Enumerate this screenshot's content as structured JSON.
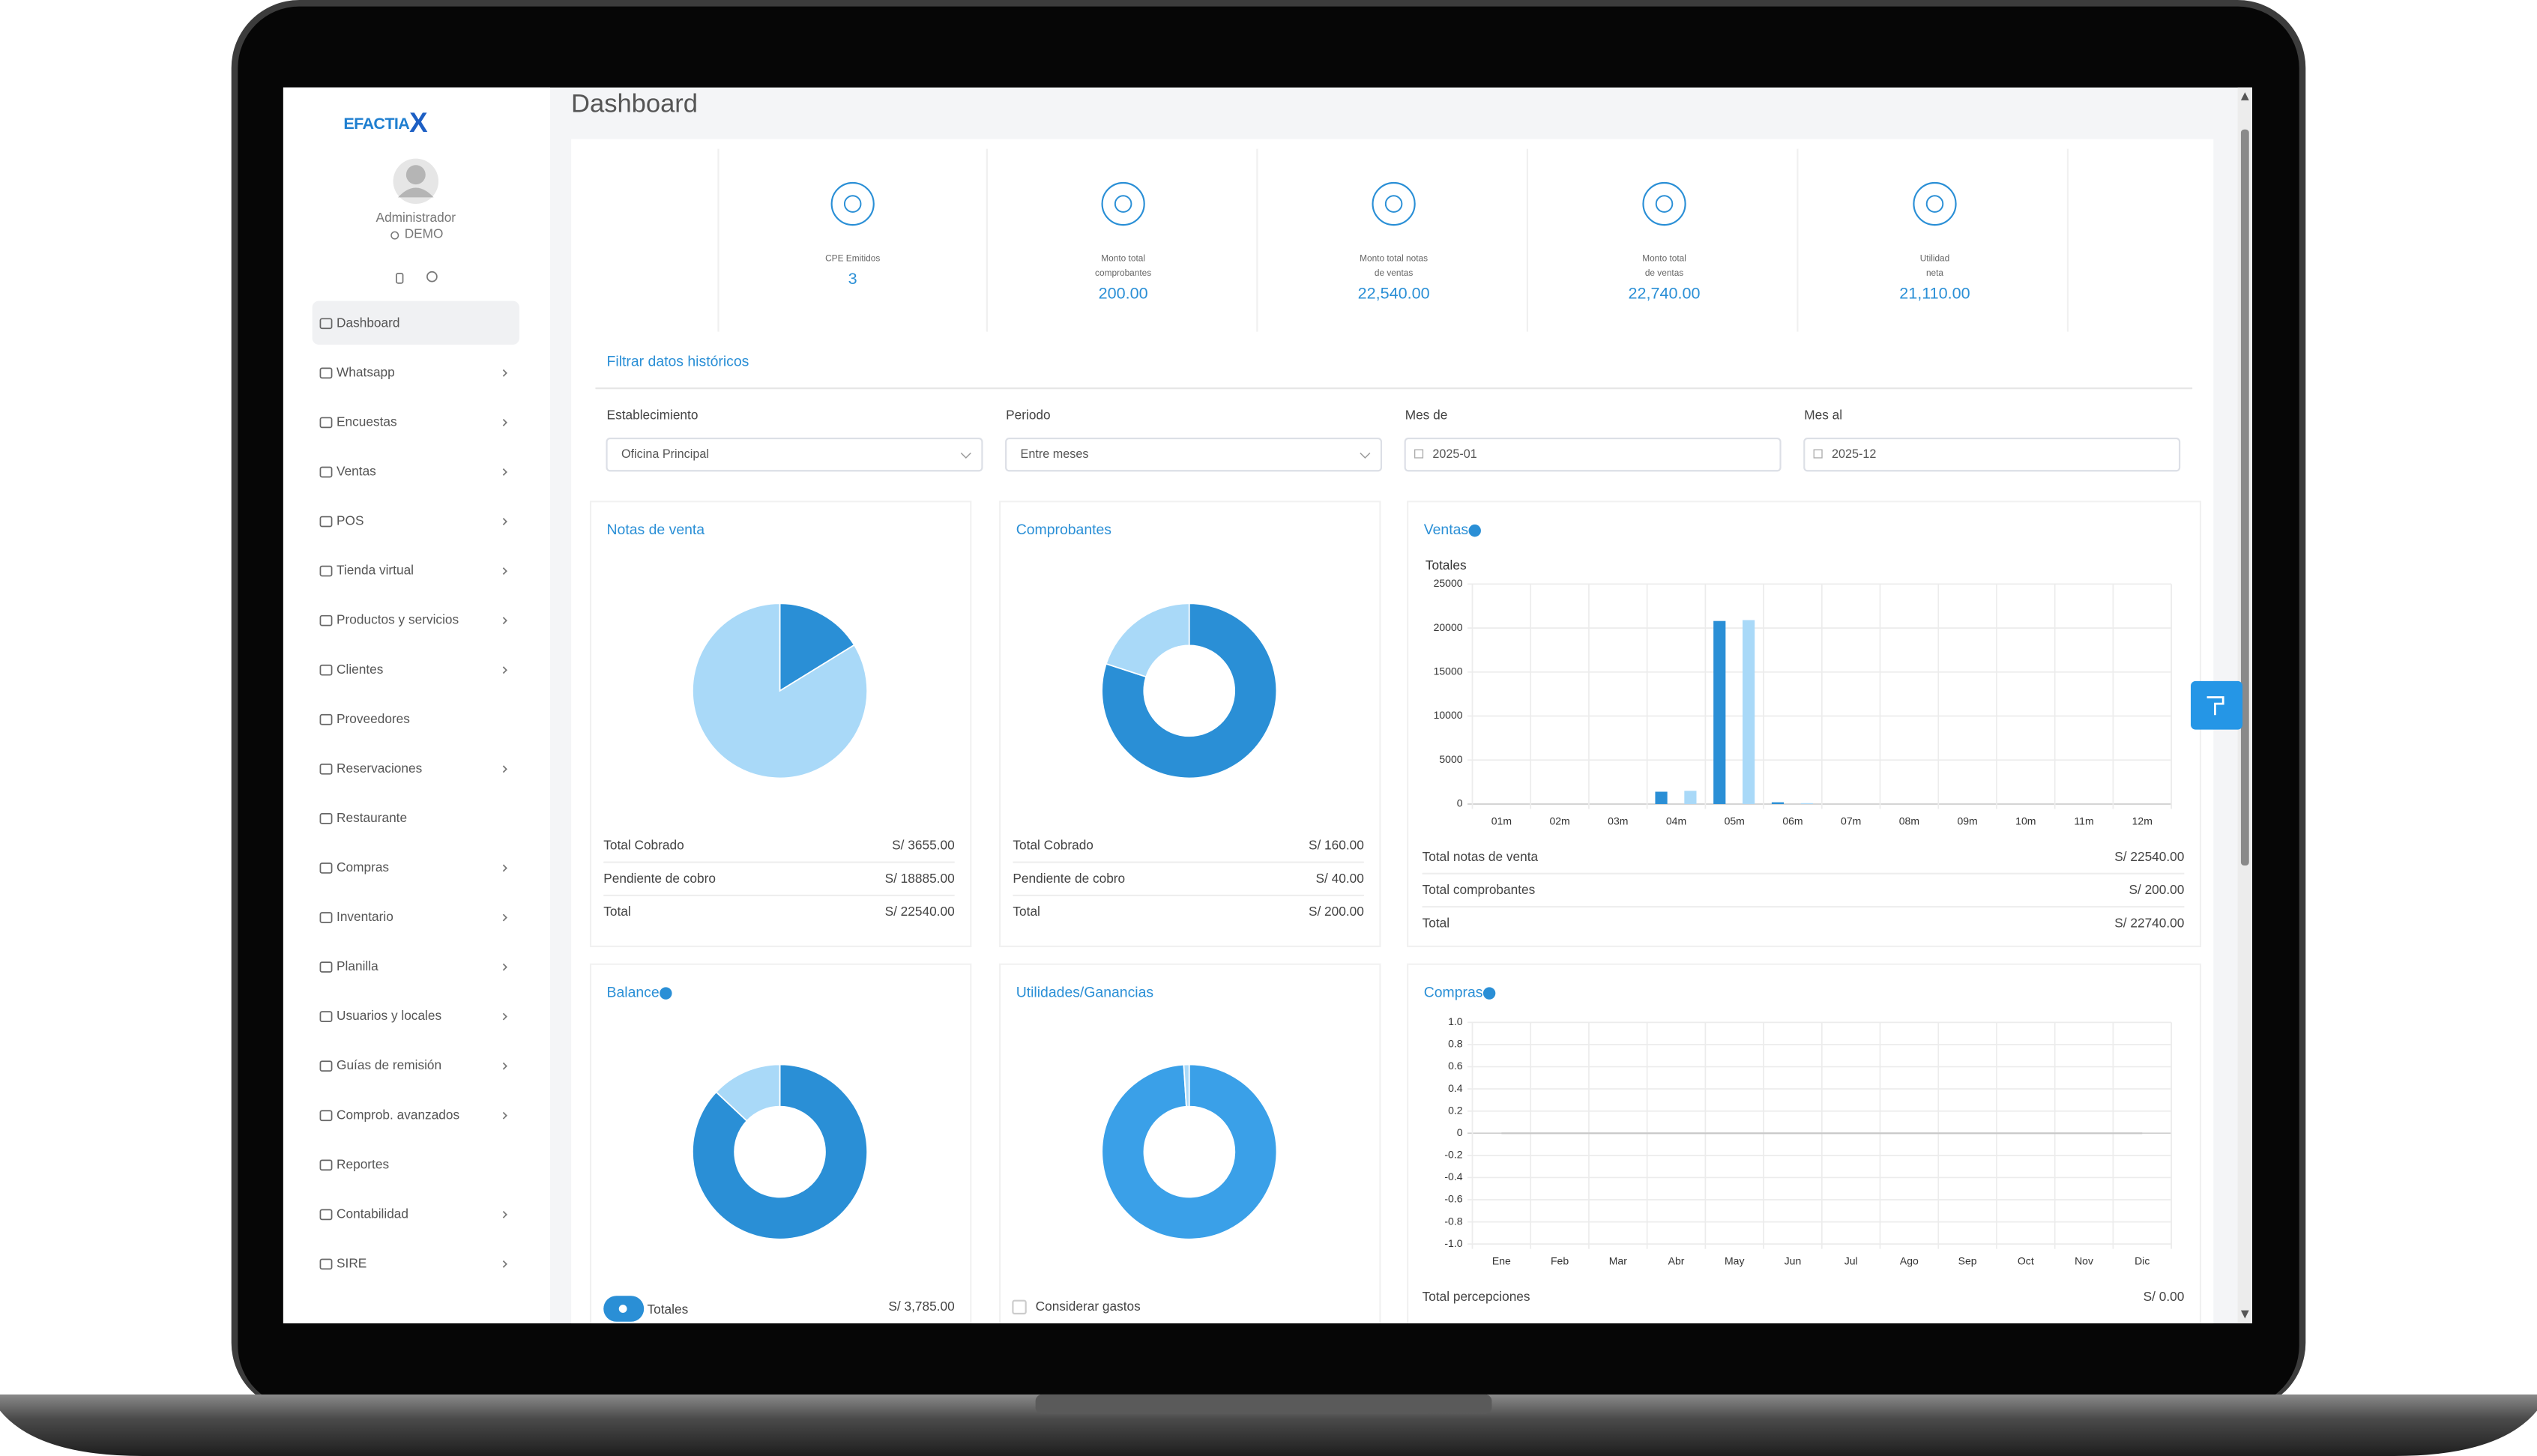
{
  "brand": {
    "name": "EFACTIA",
    "mark": "X"
  },
  "user": {
    "name": "Administrador",
    "company": "DEMO"
  },
  "menu": [
    {
      "label": "Dashboard",
      "active": true
    },
    {
      "label": "Whatsapp",
      "submenu": true
    },
    {
      "label": "Encuestas",
      "submenu": true
    },
    {
      "label": "Ventas",
      "submenu": true
    },
    {
      "label": "POS",
      "submenu": true
    },
    {
      "label": "Tienda virtual",
      "submenu": true
    },
    {
      "label": "Productos y servicios",
      "submenu": true
    },
    {
      "label": "Clientes",
      "submenu": true
    },
    {
      "label": "Proveedores"
    },
    {
      "label": "Reservaciones",
      "submenu": true
    },
    {
      "label": "Restaurante"
    },
    {
      "label": "Compras",
      "submenu": true
    },
    {
      "label": "Inventario",
      "submenu": true
    },
    {
      "label": "Planilla",
      "submenu": true
    },
    {
      "label": "Usuarios y locales",
      "submenu": true
    },
    {
      "label": "Guías de remisión",
      "submenu": true
    },
    {
      "label": "Comprob. avanzados",
      "submenu": true
    },
    {
      "label": "Reportes"
    },
    {
      "label": "Contabilidad",
      "submenu": true
    },
    {
      "label": "SIRE",
      "submenu": true
    }
  ],
  "page_title": "Dashboard",
  "stats": [
    {
      "label": [
        "CPE Emitidos"
      ],
      "value": "3"
    },
    {
      "label": [
        "Monto total",
        "comprobantes"
      ],
      "value": "200.00"
    },
    {
      "label": [
        "Monto total notas",
        "de ventas"
      ],
      "value": "22,540.00"
    },
    {
      "label": [
        "Monto total",
        "de ventas"
      ],
      "value": "22,740.00"
    },
    {
      "label": [
        "Utilidad",
        "neta"
      ],
      "value": "21,110.00"
    }
  ],
  "filters": {
    "title": "Filtrar datos históricos",
    "fields": [
      {
        "label": "Establecimiento",
        "value": "Oficina Principal",
        "kind": "select"
      },
      {
        "label": "Periodo",
        "value": "Entre meses",
        "kind": "select"
      },
      {
        "label": "Mes de",
        "value": "2025-01",
        "kind": "date"
      },
      {
        "label": "Mes al",
        "value": "2025-12",
        "kind": "date"
      }
    ]
  },
  "chart_data": [
    {
      "type": "pie",
      "title": "Notas de venta",
      "values": [
        3655,
        18885
      ],
      "colors": [
        "#2a8fd6",
        "#a9d9f8"
      ],
      "rows": [
        {
          "label": "Total Cobrado",
          "value": "S/ 3655.00"
        },
        {
          "label": "Pendiente de cobro",
          "value": "S/ 18885.00"
        },
        {
          "label": "Total",
          "value": "S/ 22540.00"
        }
      ]
    },
    {
      "type": "donut",
      "title": "Comprobantes",
      "values": [
        160,
        40
      ],
      "colors": [
        "#2a8fd6",
        "#a9d9f8"
      ],
      "rows": [
        {
          "label": "Total Cobrado",
          "value": "S/ 160.00"
        },
        {
          "label": "Pendiente de cobro",
          "value": "S/ 40.00"
        },
        {
          "label": "Total",
          "value": "S/ 200.00"
        }
      ]
    },
    {
      "type": "bar",
      "title": "Ventas",
      "info": true,
      "y_label": "Totales",
      "categories": [
        "01m",
        "02m",
        "03m",
        "04m",
        "05m",
        "06m",
        "07m",
        "08m",
        "09m",
        "10m",
        "11m",
        "12m"
      ],
      "series": [
        {
          "color": "#2a8fd6",
          "values": [
            0,
            0,
            0,
            1400,
            20800,
            200,
            0,
            0,
            0,
            0,
            0,
            0
          ]
        },
        {
          "color": "#a9d9f8",
          "values": [
            0,
            0,
            0,
            1500,
            20900,
            100,
            0,
            0,
            0,
            0,
            0,
            0
          ]
        }
      ],
      "ylim": [
        0,
        25000
      ],
      "yticks": [
        0,
        5000,
        10000,
        15000,
        20000,
        25000
      ],
      "grid": true,
      "rows": [
        {
          "label": "Total notas de venta",
          "value": "S/ 22540.00"
        },
        {
          "label": "Total comprobantes",
          "value": "S/ 200.00"
        },
        {
          "label": "Total",
          "value": "S/ 22740.00"
        }
      ]
    },
    {
      "type": "donut",
      "title": "Balance",
      "info": true,
      "values": [
        87,
        13
      ],
      "colors": [
        "#2a8fd6",
        "#a9d9f8"
      ],
      "footer": {
        "toggle": true,
        "label": "Totales",
        "value": "S/ 3,785.00"
      }
    },
    {
      "type": "donut",
      "title": "Utilidades/Ganancias",
      "values": [
        99,
        1
      ],
      "colors": [
        "#3aa0e8",
        "#a9d9f8"
      ],
      "footer": {
        "checkbox": true,
        "label": "Considerar gastos"
      }
    },
    {
      "type": "line",
      "title": "Compras",
      "info": true,
      "categories": [
        "Ene",
        "Feb",
        "Mar",
        "Abr",
        "May",
        "Jun",
        "Jul",
        "Ago",
        "Sep",
        "Oct",
        "Nov",
        "Dic"
      ],
      "series": [
        {
          "color": "#c8c8c8",
          "values": [
            0,
            0,
            0,
            0,
            0,
            0,
            0,
            0,
            0,
            0,
            0,
            0
          ]
        }
      ],
      "ylim": [
        -1,
        1
      ],
      "yticks": [
        {
          "value": -1,
          "label": "-1.0"
        },
        {
          "value": -0.8,
          "label": "-0.8"
        },
        {
          "value": -0.6,
          "label": "-0.6"
        },
        {
          "value": -0.4,
          "label": "-0.4"
        },
        {
          "value": -0.2,
          "label": "-0.2"
        },
        0,
        {
          "value": 0.2,
          "label": "0.2"
        },
        {
          "value": 0.4,
          "label": "0.4"
        },
        {
          "value": 0.6,
          "label": "0.6"
        },
        {
          "value": 0.8,
          "label": "0.8"
        },
        {
          "value": 1,
          "label": "1.0"
        }
      ],
      "grid": true,
      "rows": [
        {
          "label": "Total percepciones",
          "value": "S/ 0.00"
        }
      ]
    }
  ]
}
